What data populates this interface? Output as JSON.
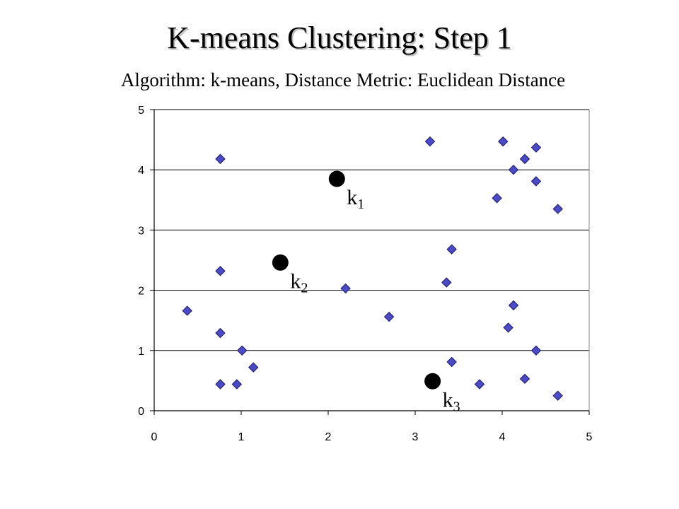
{
  "title": "K-means Clustering: Step 1",
  "subtitle": "Algorithm: k-means, Distance Metric: Euclidean Distance",
  "colors": {
    "point_fill": "#4a4acb",
    "point_stroke": "#1a1a66",
    "centroid": "#000000",
    "grid": "#000000"
  },
  "chart_data": {
    "type": "scatter",
    "title": "",
    "xlabel": "",
    "ylabel": "",
    "xlim": [
      0,
      5
    ],
    "ylim": [
      0,
      5
    ],
    "xticks": [
      0,
      1,
      2,
      3,
      4,
      5
    ],
    "yticks": [
      0,
      1,
      2,
      3,
      4,
      5
    ],
    "grid": "horizontal",
    "points": [
      {
        "x": 0.76,
        "y": 4.18
      },
      {
        "x": 0.76,
        "y": 2.32
      },
      {
        "x": 0.38,
        "y": 1.66
      },
      {
        "x": 0.76,
        "y": 1.29
      },
      {
        "x": 1.01,
        "y": 1.0
      },
      {
        "x": 1.14,
        "y": 0.72
      },
      {
        "x": 0.76,
        "y": 0.44
      },
      {
        "x": 0.95,
        "y": 0.44
      },
      {
        "x": 2.2,
        "y": 2.03
      },
      {
        "x": 2.7,
        "y": 1.56
      },
      {
        "x": 3.17,
        "y": 4.47
      },
      {
        "x": 3.42,
        "y": 2.68
      },
      {
        "x": 3.36,
        "y": 2.13
      },
      {
        "x": 3.42,
        "y": 0.81
      },
      {
        "x": 3.74,
        "y": 0.44
      },
      {
        "x": 4.01,
        "y": 4.47
      },
      {
        "x": 4.13,
        "y": 4.0
      },
      {
        "x": 4.26,
        "y": 4.18
      },
      {
        "x": 4.39,
        "y": 4.37
      },
      {
        "x": 4.39,
        "y": 3.81
      },
      {
        "x": 3.94,
        "y": 3.53
      },
      {
        "x": 4.64,
        "y": 3.35
      },
      {
        "x": 4.13,
        "y": 1.75
      },
      {
        "x": 4.07,
        "y": 1.38
      },
      {
        "x": 4.39,
        "y": 1.0
      },
      {
        "x": 4.26,
        "y": 0.53
      },
      {
        "x": 4.64,
        "y": 0.25
      }
    ],
    "centroids": [
      {
        "label": "k",
        "sub": "1",
        "x": 2.1,
        "y": 3.85
      },
      {
        "label": "k",
        "sub": "2",
        "x": 1.45,
        "y": 2.46
      },
      {
        "label": "k",
        "sub": "3",
        "x": 3.2,
        "y": 0.49
      }
    ]
  }
}
